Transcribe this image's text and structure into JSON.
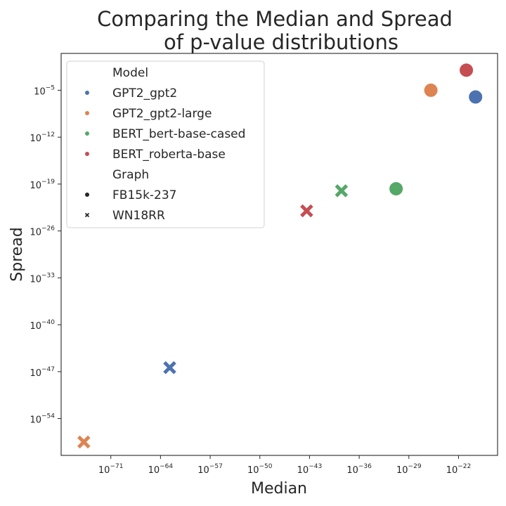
{
  "chart_data": {
    "type": "scatter",
    "title_lines": [
      "Comparing the Median and Spread",
      "of p-value distributions"
    ],
    "xlabel": "Median",
    "ylabel": "Spread",
    "x_scale": "log",
    "y_scale": "log",
    "x_log10_range": [
      -78,
      -16.5
    ],
    "y_log10_range": [
      -59.5,
      0.5
    ],
    "x_tick_exponents": [
      -71,
      -64,
      -57,
      -50,
      -43,
      -36,
      -29,
      -22
    ],
    "y_tick_exponents": [
      -5,
      -12,
      -19,
      -26,
      -33,
      -40,
      -47,
      -54
    ],
    "tick_base": "10",
    "grid": false,
    "legend_position": "top-left",
    "legend": {
      "hue_title": "Model",
      "style_title": "Graph",
      "hue_items": [
        {
          "name": "GPT2_gpt2",
          "color": "#4c72b0"
        },
        {
          "name": "GPT2_gpt2-large",
          "color": "#dd8452"
        },
        {
          "name": "BERT_bert-base-cased",
          "color": "#55a868"
        },
        {
          "name": "BERT_roberta-base",
          "color": "#c44e52"
        }
      ],
      "style_items": [
        {
          "name": "FB15k-237",
          "marker": "circle"
        },
        {
          "name": "WN18RR",
          "marker": "x"
        }
      ]
    },
    "points": [
      {
        "model": "GPT2_gpt2",
        "graph": "FB15k-237",
        "x_exp": -19.6,
        "y_exp": -6.0
      },
      {
        "model": "GPT2_gpt2-large",
        "graph": "FB15k-237",
        "x_exp": -25.9,
        "y_exp": -5.0
      },
      {
        "model": "BERT_bert-base-cased",
        "graph": "FB15k-237",
        "x_exp": -30.8,
        "y_exp": -19.7
      },
      {
        "model": "BERT_roberta-base",
        "graph": "FB15k-237",
        "x_exp": -20.9,
        "y_exp": -2.0
      },
      {
        "model": "GPT2_gpt2",
        "graph": "WN18RR",
        "x_exp": -62.7,
        "y_exp": -46.4
      },
      {
        "model": "GPT2_gpt2-large",
        "graph": "WN18RR",
        "x_exp": -74.8,
        "y_exp": -57.5
      },
      {
        "model": "BERT_bert-base-cased",
        "graph": "WN18RR",
        "x_exp": -38.5,
        "y_exp": -20.0
      },
      {
        "model": "BERT_roberta-base",
        "graph": "WN18RR",
        "x_exp": -43.4,
        "y_exp": -23.0
      }
    ]
  }
}
